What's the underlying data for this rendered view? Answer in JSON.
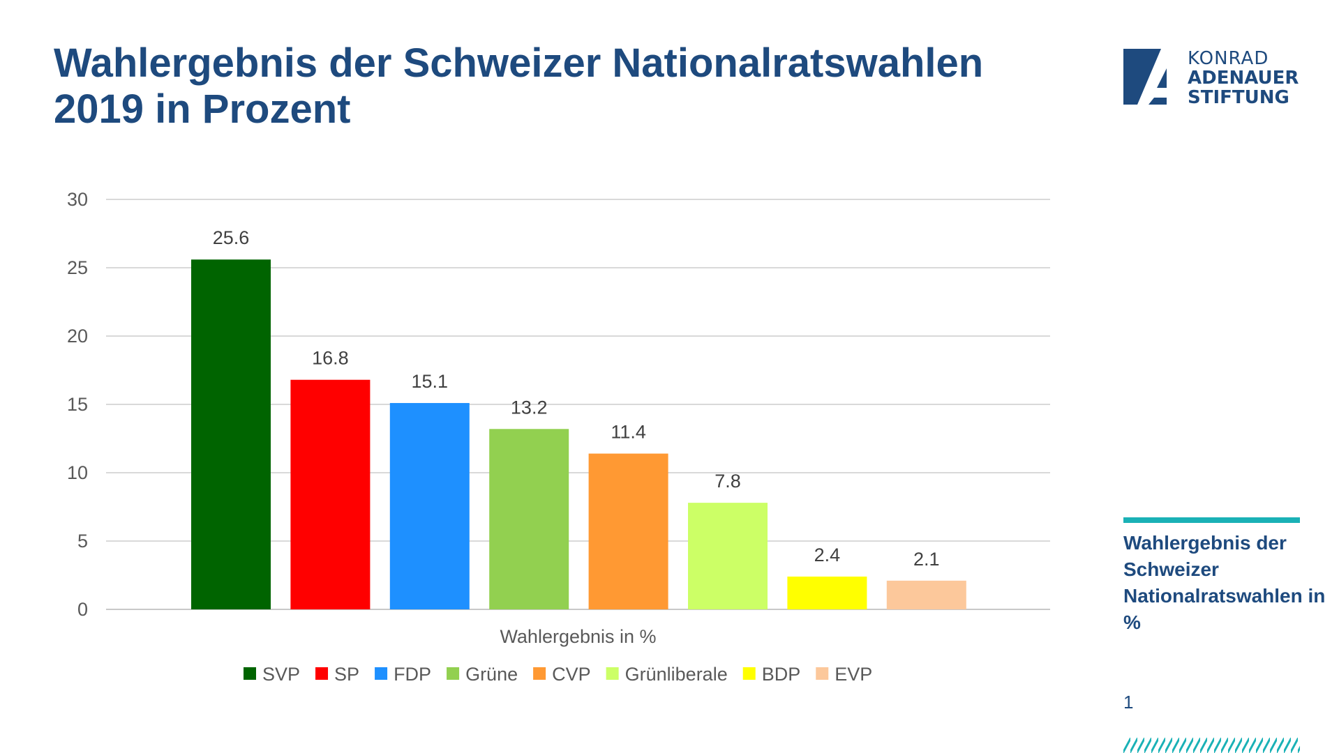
{
  "slide": {
    "title": "Wahlergebnis der Schweizer Nationalratswahlen 2019 in Prozent",
    "side_label": "Wahlergebnis der Schweizer Nationalratswahlen in %",
    "page_number": "1"
  },
  "logo": {
    "line1": "KONRAD",
    "line2": "ADENAUER",
    "line3": "STIFTUNG",
    "color": "#1e4a7e"
  },
  "colors": {
    "title": "#1e4a7e",
    "accent": "#1ab1b6"
  },
  "chart_data": {
    "type": "bar",
    "xlabel": "Wahlergebnis in %",
    "ylim": [
      0,
      30
    ],
    "yticks": [
      0,
      5,
      10,
      15,
      20,
      25,
      30
    ],
    "grid": true,
    "legend_position": "bottom",
    "series": [
      {
        "name": "SVP",
        "value": 25.6,
        "color": "#006400"
      },
      {
        "name": "SP",
        "value": 16.8,
        "color": "#ff0000"
      },
      {
        "name": "FDP",
        "value": 15.1,
        "color": "#1e90ff"
      },
      {
        "name": "Grüne",
        "value": 13.2,
        "color": "#92d050"
      },
      {
        "name": "CVP",
        "value": 11.4,
        "color": "#ff9933"
      },
      {
        "name": "Grünliberale",
        "value": 7.8,
        "color": "#ccff66"
      },
      {
        "name": "BDP",
        "value": 2.4,
        "color": "#ffff00"
      },
      {
        "name": "EVP",
        "value": 2.1,
        "color": "#fcc89b"
      }
    ]
  }
}
